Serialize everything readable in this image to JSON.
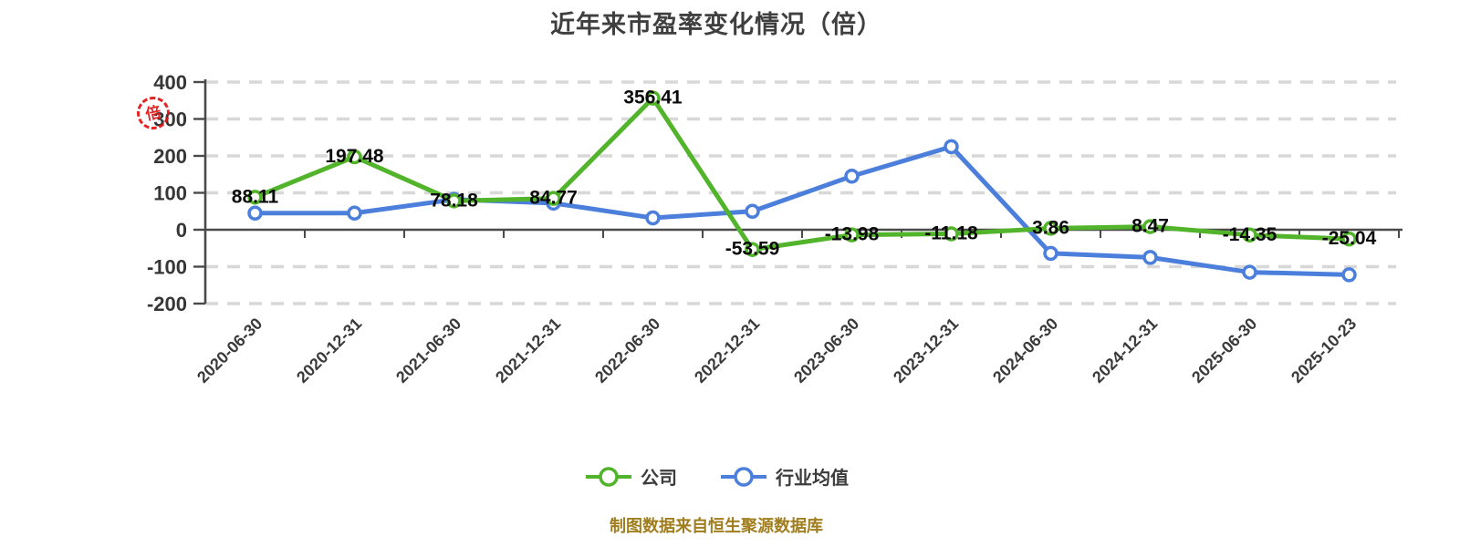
{
  "title": "近年来市盈率变化情况（倍）",
  "y_axis_unit_stamp": "倍",
  "footer": {
    "text": "制图数据来自恒生聚源数据库"
  },
  "legend": {
    "items": [
      {
        "label": "公司",
        "color": "#52b42a"
      },
      {
        "label": "行业均值",
        "color": "#4c7fdb"
      }
    ]
  },
  "chart_data": {
    "type": "line",
    "title": "近年来市盈率变化情况（倍）",
    "categories": [
      "2020-06-30",
      "2020-12-31",
      "2021-06-30",
      "2021-12-31",
      "2022-06-30",
      "2022-12-31",
      "2023-06-30",
      "2023-12-31",
      "2024-06-30",
      "2024-12-31",
      "2025-06-30",
      "2025-10-23"
    ],
    "series": [
      {
        "name": "公司",
        "color": "#52b42a",
        "values": [
          88.11,
          197.48,
          78.18,
          84.77,
          356.41,
          -53.59,
          -13.98,
          -11.18,
          3.86,
          8.47,
          -14.35,
          -25.04
        ],
        "data_labels": true
      },
      {
        "name": "行业均值",
        "color": "#4c7fdb",
        "values": [
          45,
          45,
          82,
          72,
          32,
          50,
          145,
          225,
          -64,
          -75,
          -115,
          -122
        ],
        "data_labels": false,
        "values_estimated": true
      }
    ],
    "yticks": [
      400,
      300,
      200,
      100,
      0,
      -100,
      -200
    ],
    "ylim": [
      -200,
      400
    ],
    "grid": "horizontal-dashed",
    "legend_position": "bottom",
    "x_label_rotation": -45
  },
  "colors": {
    "company": "#52b42a",
    "industry": "#4c7fdb",
    "grid": "#d8d8d8",
    "axis": "#4a4a4a",
    "tick_label": "#363636",
    "data_label": "#0a0a0a",
    "title": "#3f3f3f",
    "footer": "#a07e1e",
    "stamp": "#e01414"
  }
}
